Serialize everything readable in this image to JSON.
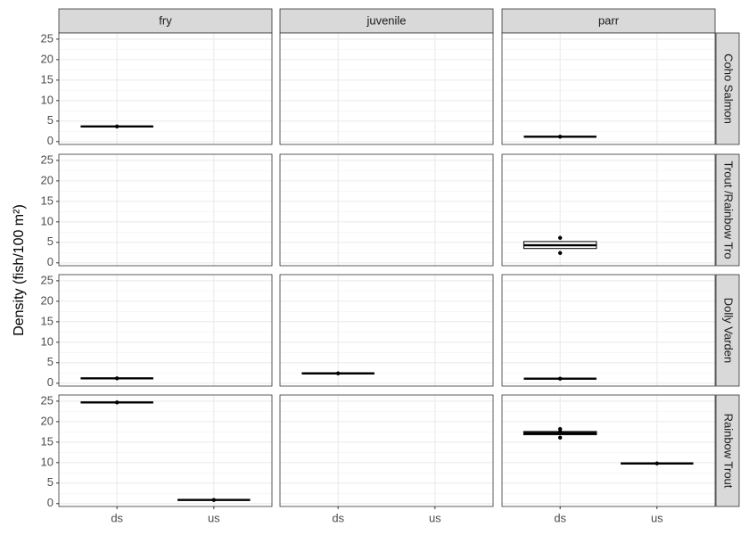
{
  "chart_data": {
    "type": "box",
    "ylabel": "Density (fish/100 m²)",
    "columns": [
      "fry",
      "juvenile",
      "parr"
    ],
    "rows": [
      "Coho Salmon",
      "Trout /Rainbow Tro",
      "Dolly Varden",
      "Rainbow Trout"
    ],
    "categories": [
      "ds",
      "us"
    ],
    "ylim": [
      -0.7,
      26.5
    ],
    "yticks": [
      0,
      5,
      10,
      15,
      20,
      25
    ],
    "grid": true,
    "color": "#000000",
    "panels": [
      [
        [
          {
            "q1": 3.7,
            "median": 3.7,
            "q3": 3.7,
            "points": [
              3.7
            ]
          },
          null
        ],
        [
          null,
          null
        ],
        [
          {
            "q1": 1.2,
            "median": 1.2,
            "q3": 1.2,
            "points": [
              1.2
            ]
          },
          null
        ]
      ],
      [
        [
          null,
          null
        ],
        [
          null,
          null
        ],
        [
          {
            "q1": 3.5,
            "median": 4.3,
            "q3": 5.2,
            "points": [
              6.1,
              2.4
            ]
          },
          null
        ]
      ],
      [
        [
          {
            "q1": 1.2,
            "median": 1.2,
            "q3": 1.2,
            "points": [
              1.2
            ]
          },
          null
        ],
        [
          {
            "q1": 2.4,
            "median": 2.4,
            "q3": 2.4,
            "points": [
              2.4
            ]
          },
          null
        ],
        [
          {
            "q1": 1.1,
            "median": 1.1,
            "q3": 1.1,
            "points": [
              1.1
            ]
          },
          null
        ]
      ],
      [
        [
          {
            "q1": 24.7,
            "median": 24.7,
            "q3": 24.7,
            "points": [
              24.7
            ]
          },
          {
            "q1": 0.9,
            "median": 0.9,
            "q3": 0.9,
            "points": [
              0.9
            ]
          }
        ],
        [
          null,
          null
        ],
        [
          {
            "q1": 16.8,
            "median": 17.2,
            "q3": 17.6,
            "points": [
              18.2,
              17.5,
              16.1
            ]
          },
          {
            "q1": 9.8,
            "median": 9.8,
            "q3": 9.8,
            "points": [
              9.8
            ]
          }
        ]
      ]
    ]
  }
}
